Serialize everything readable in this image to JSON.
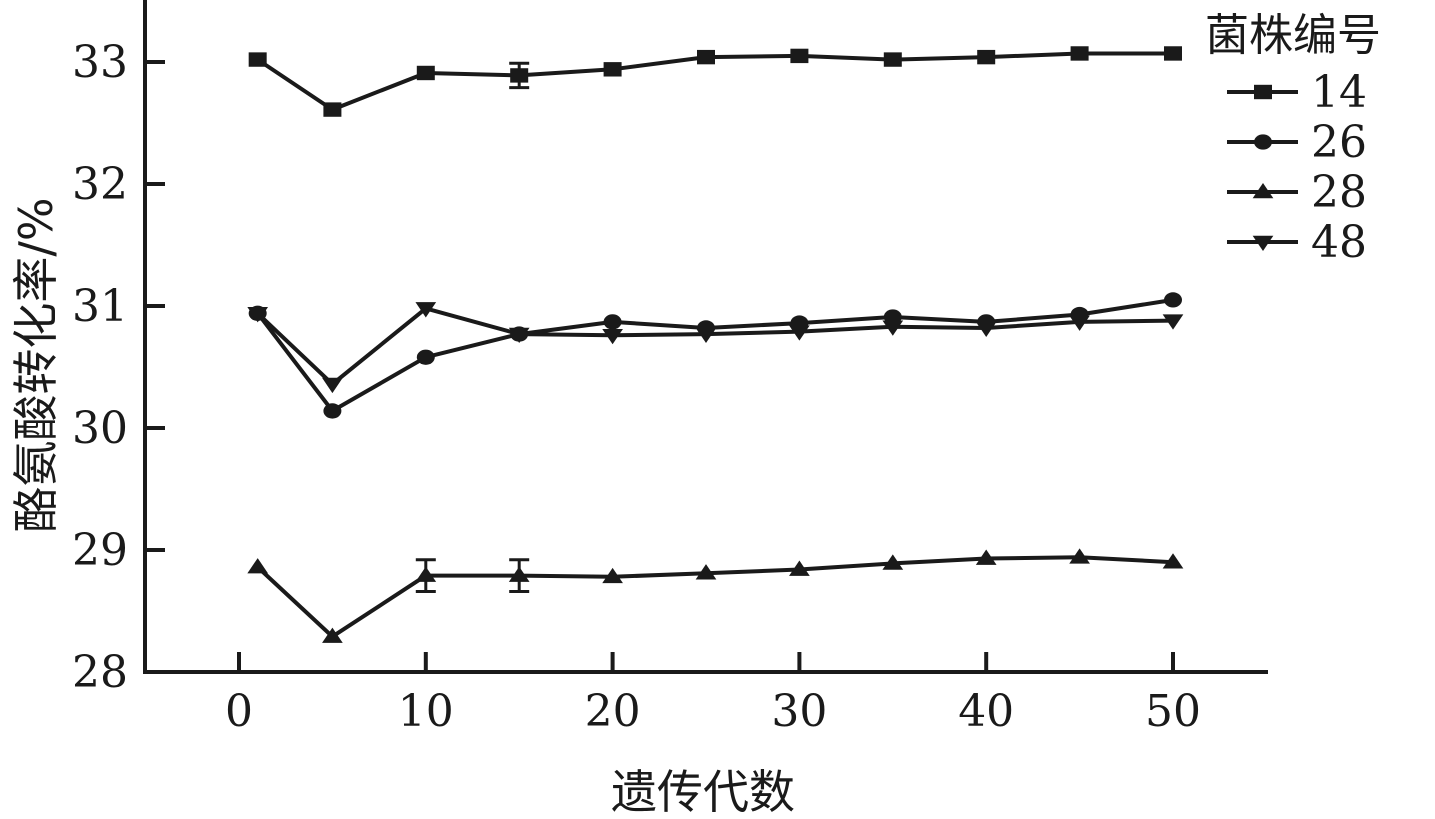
{
  "chart_data": {
    "type": "line",
    "title": "",
    "xlabel": "遗传代数",
    "ylabel": "酪氨酸转化率/%",
    "xlim": [
      -5,
      55
    ],
    "ylim": [
      28,
      33.5
    ],
    "xticks": [
      0,
      10,
      20,
      30,
      40,
      50
    ],
    "yticks": [
      28,
      29,
      30,
      31,
      32,
      33
    ],
    "grid": false,
    "legend": {
      "title": "菌株编号",
      "position": "upper right (outside plot)"
    },
    "x": [
      1,
      5,
      10,
      15,
      20,
      25,
      30,
      35,
      40,
      45,
      50
    ],
    "series": [
      {
        "name": "14",
        "marker": "square",
        "values": [
          33.02,
          32.61,
          32.91,
          32.89,
          32.94,
          33.04,
          33.05,
          33.02,
          33.04,
          33.07,
          33.07
        ],
        "errors": [
          0.02,
          0.02,
          0.04,
          0.1,
          0.02,
          0.02,
          0.02,
          0.02,
          0.02,
          0.02,
          0.02
        ]
      },
      {
        "name": "26",
        "marker": "circle",
        "values": [
          30.94,
          30.14,
          30.58,
          30.77,
          30.87,
          30.82,
          30.86,
          30.91,
          30.87,
          30.93,
          31.05
        ],
        "errors": [
          0.02,
          0.03,
          0.04,
          0.02,
          0.02,
          0.02,
          0.02,
          0.02,
          0.02,
          0.02,
          0.02
        ]
      },
      {
        "name": "28",
        "marker": "triangle-up",
        "values": [
          28.86,
          28.29,
          28.79,
          28.79,
          28.78,
          28.81,
          28.84,
          28.89,
          28.93,
          28.94,
          28.9
        ],
        "errors": [
          0.02,
          0.02,
          0.13,
          0.13,
          0.02,
          0.02,
          0.02,
          0.02,
          0.02,
          0.02,
          0.02
        ]
      },
      {
        "name": "48",
        "marker": "triangle-down",
        "values": [
          30.94,
          30.36,
          30.98,
          30.77,
          30.76,
          30.77,
          30.79,
          30.83,
          30.82,
          30.87,
          30.88
        ],
        "errors": [
          0.02,
          0.02,
          0.03,
          0.02,
          0.02,
          0.02,
          0.02,
          0.02,
          0.02,
          0.02,
          0.02
        ]
      }
    ]
  },
  "colors": {
    "ink": "#1a1a1a",
    "background": "#ffffff"
  }
}
